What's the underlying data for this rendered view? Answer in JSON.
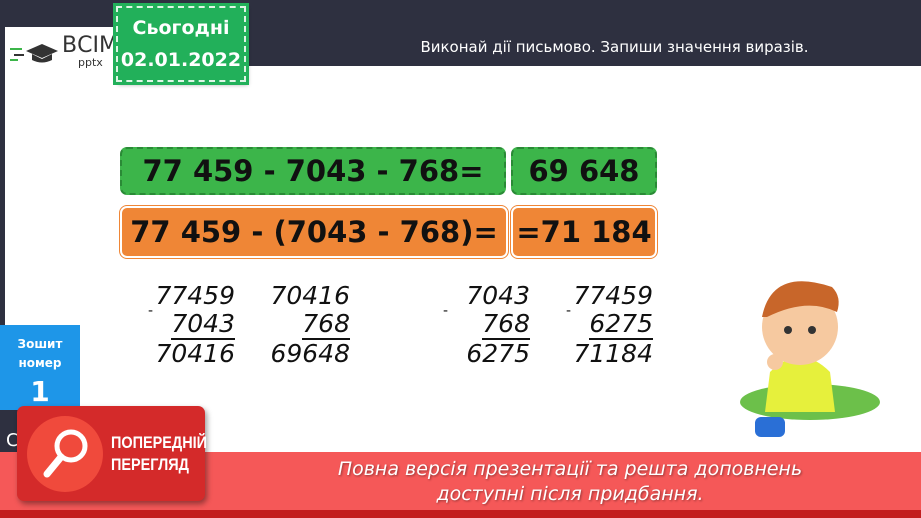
{
  "logo": {
    "brand": "ВСІМ",
    "sub": "pptx"
  },
  "date": {
    "label": "Сьогодні",
    "value": "02.01.2022"
  },
  "header": {
    "task": "Виконай дії письмово. Запиши значення виразів."
  },
  "expressions": [
    {
      "expr": "77 459 - 7043 - 768=",
      "result": "69 648",
      "color": "#3cb54a"
    },
    {
      "expr": "77 459 - (7043 - 768)=",
      "result": "=71 184",
      "color": "#ef8636"
    }
  ],
  "calculations": [
    {
      "top": "77459",
      "bottom": "7043",
      "result": "70416"
    },
    {
      "top": "70416",
      "bottom": "768",
      "result": "69648"
    },
    {
      "top": "7043",
      "bottom": "768",
      "result": "6275"
    },
    {
      "top": "77459",
      "bottom": "6275",
      "result": "71184"
    }
  ],
  "notebook": {
    "line1": "Зошит",
    "line2": "номер",
    "number": "1"
  },
  "left_partial": "С",
  "preview": {
    "line1": "ПОПЕРЕДНІЙ",
    "line2": "ПЕРЕГЛЯД"
  },
  "banner": {
    "line1": "Повна версія презентації та решта доповнень",
    "line2": "доступні після придбання."
  }
}
